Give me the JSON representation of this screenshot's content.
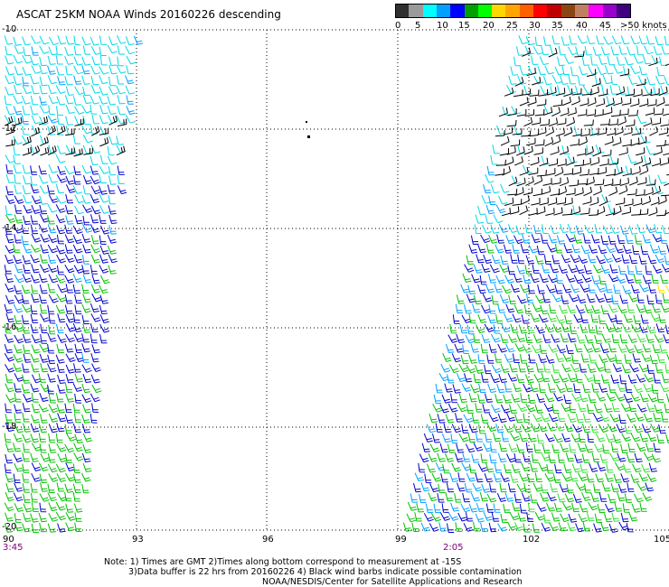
{
  "title": "ASCAT 25KM NOAA Winds 20160226 descending",
  "legend": {
    "colors": [
      "#303030",
      "#9a9a9a",
      "#00ffff",
      "#00a0ff",
      "#0000ff",
      "#00a000",
      "#00ff00",
      "#ffd700",
      "#ffa500",
      "#ff6000",
      "#ff0000",
      "#c00000",
      "#8b4513",
      "#c08060",
      "#ff00ff",
      "#9900cc",
      "#400080"
    ],
    "labels": [
      "0",
      "5",
      "10",
      "15",
      "20",
      "25",
      "30",
      "35",
      "40",
      "45",
      ">50 knots"
    ]
  },
  "axes": {
    "lat_labels": [
      "-10",
      "-12",
      "-14",
      "-16",
      "-18",
      "-20"
    ],
    "lon_labels": [
      "90",
      "93",
      "96",
      "99",
      "102",
      "105"
    ]
  },
  "times": [
    "3:45",
    "2:05"
  ],
  "notes": [
    "Note: 1) Times are GMT 2)Times along bottom correspond to measurement at -15S",
    "3)Data buffer is 22 hrs from 20160226 4) Black wind barbs indicate possible contamination",
    "NOAA/NESDIS/Center for Satellite Applications and Research"
  ]
}
